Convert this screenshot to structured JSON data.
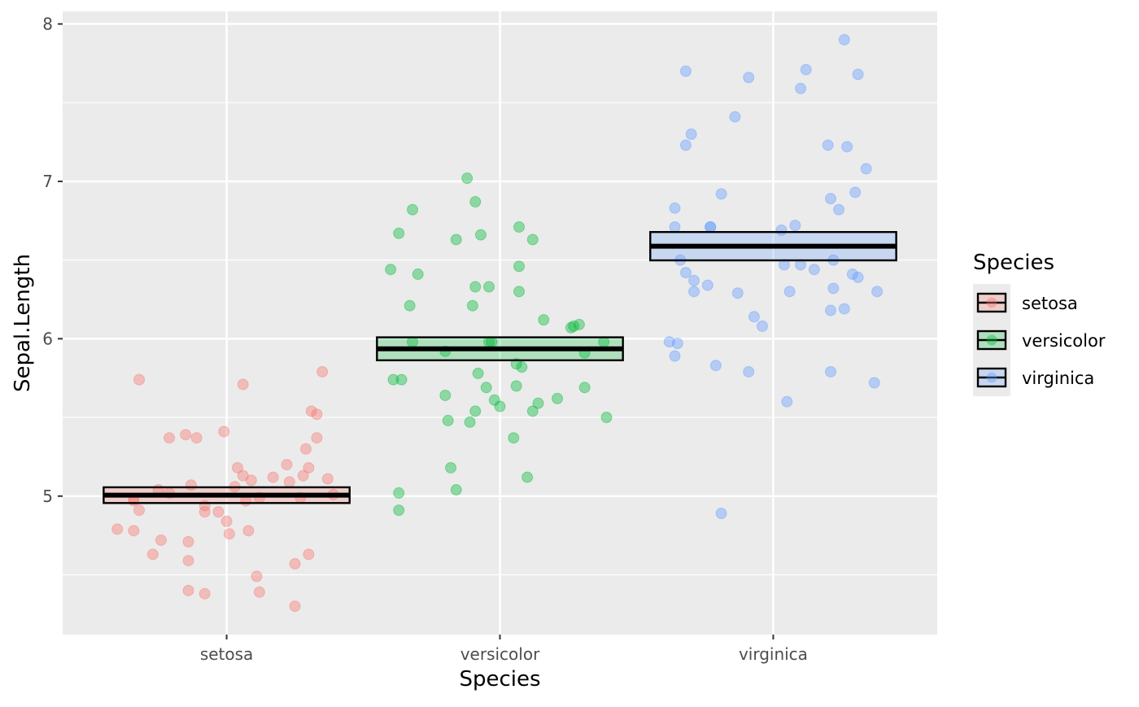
{
  "chart_data": {
    "type": "scatter",
    "title": "",
    "xlabel": "Species",
    "ylabel": "Sepal.Length",
    "categories": [
      "setosa",
      "versicolor",
      "virginica"
    ],
    "y_ticks": [
      5,
      6,
      7,
      8
    ],
    "ylim": [
      4.12,
      8.08
    ],
    "xlim": [
      0.4,
      3.6
    ],
    "grid": true,
    "legend": {
      "title": "Species",
      "position": "right",
      "entries": [
        "setosa",
        "versicolor",
        "virginica"
      ]
    },
    "colors": {
      "setosa": "#F8766D",
      "versicolor": "#00BA38",
      "virginica": "#619CFF",
      "panel": "#EBEBEB",
      "grid": "#FFFFFF"
    },
    "point_alpha": 0.4,
    "crossbars": [
      {
        "category": "setosa",
        "mean": 5.006,
        "lower": 4.956,
        "upper": 5.056
      },
      {
        "category": "versicolor",
        "mean": 5.936,
        "lower": 5.863,
        "upper": 6.009
      },
      {
        "category": "virginica",
        "mean": 6.588,
        "lower": 6.498,
        "upper": 6.678
      }
    ],
    "series": [
      {
        "name": "setosa",
        "points": [
          [
            0.68,
            5.74
          ],
          [
            1.06,
            5.71
          ],
          [
            1.35,
            5.79
          ],
          [
            0.79,
            5.37
          ],
          [
            0.85,
            5.39
          ],
          [
            0.89,
            5.37
          ],
          [
            0.99,
            5.41
          ],
          [
            1.31,
            5.54
          ],
          [
            1.33,
            5.52
          ],
          [
            1.33,
            5.37
          ],
          [
            1.29,
            5.3
          ],
          [
            1.04,
            5.18
          ],
          [
            1.06,
            5.13
          ],
          [
            1.09,
            5.1
          ],
          [
            1.17,
            5.12
          ],
          [
            1.22,
            5.2
          ],
          [
            1.23,
            5.09
          ],
          [
            1.3,
            5.18
          ],
          [
            1.28,
            5.13
          ],
          [
            1.03,
            5.06
          ],
          [
            0.87,
            5.07
          ],
          [
            0.75,
            5.04
          ],
          [
            0.79,
            5.02
          ],
          [
            0.92,
            4.94
          ],
          [
            0.92,
            4.9
          ],
          [
            0.97,
            4.9
          ],
          [
            0.68,
            4.91
          ],
          [
            0.66,
            4.97
          ],
          [
            0.66,
            4.98
          ],
          [
            1.07,
            4.97
          ],
          [
            1.12,
            4.99
          ],
          [
            1.27,
            4.99
          ],
          [
            1.39,
            5.01
          ],
          [
            1.37,
            5.11
          ],
          [
            1.0,
            4.84
          ],
          [
            1.01,
            4.76
          ],
          [
            1.08,
            4.78
          ],
          [
            0.6,
            4.79
          ],
          [
            0.66,
            4.78
          ],
          [
            0.76,
            4.72
          ],
          [
            0.86,
            4.71
          ],
          [
            0.73,
            4.63
          ],
          [
            0.86,
            4.59
          ],
          [
            1.3,
            4.63
          ],
          [
            1.25,
            4.57
          ],
          [
            1.11,
            4.49
          ],
          [
            0.86,
            4.4
          ],
          [
            0.92,
            4.38
          ],
          [
            1.12,
            4.39
          ],
          [
            1.25,
            4.3
          ]
        ]
      },
      {
        "name": "versicolor",
        "points": [
          [
            1.88,
            7.02
          ],
          [
            1.91,
            6.87
          ],
          [
            1.68,
            6.82
          ],
          [
            1.63,
            6.67
          ],
          [
            1.84,
            6.63
          ],
          [
            1.93,
            6.66
          ],
          [
            2.07,
            6.71
          ],
          [
            2.12,
            6.63
          ],
          [
            1.6,
            6.44
          ],
          [
            1.7,
            6.41
          ],
          [
            2.07,
            6.46
          ],
          [
            1.91,
            6.33
          ],
          [
            1.96,
            6.33
          ],
          [
            1.67,
            6.21
          ],
          [
            1.9,
            6.21
          ],
          [
            2.07,
            6.3
          ],
          [
            2.16,
            6.12
          ],
          [
            2.29,
            6.09
          ],
          [
            2.26,
            6.07
          ],
          [
            2.27,
            6.08
          ],
          [
            1.68,
            5.98
          ],
          [
            1.8,
            5.92
          ],
          [
            1.96,
            5.98
          ],
          [
            1.97,
            5.98
          ],
          [
            2.38,
            5.98
          ],
          [
            2.31,
            5.91
          ],
          [
            2.06,
            5.84
          ],
          [
            2.08,
            5.82
          ],
          [
            1.92,
            5.78
          ],
          [
            1.61,
            5.74
          ],
          [
            1.64,
            5.74
          ],
          [
            1.95,
            5.69
          ],
          [
            2.06,
            5.7
          ],
          [
            2.31,
            5.69
          ],
          [
            1.8,
            5.64
          ],
          [
            1.98,
            5.61
          ],
          [
            2.0,
            5.57
          ],
          [
            2.14,
            5.59
          ],
          [
            2.21,
            5.62
          ],
          [
            1.91,
            5.54
          ],
          [
            2.12,
            5.54
          ],
          [
            1.81,
            5.48
          ],
          [
            1.89,
            5.47
          ],
          [
            2.39,
            5.5
          ],
          [
            2.05,
            5.37
          ],
          [
            1.82,
            5.18
          ],
          [
            2.1,
            5.12
          ],
          [
            1.84,
            5.04
          ],
          [
            1.63,
            5.02
          ],
          [
            1.63,
            4.91
          ]
        ]
      },
      {
        "name": "virginica",
        "points": [
          [
            3.26,
            7.9
          ],
          [
            2.68,
            7.7
          ],
          [
            3.12,
            7.71
          ],
          [
            2.91,
            7.66
          ],
          [
            3.31,
            7.68
          ],
          [
            3.1,
            7.59
          ],
          [
            2.86,
            7.41
          ],
          [
            2.7,
            7.3
          ],
          [
            2.68,
            7.23
          ],
          [
            3.2,
            7.23
          ],
          [
            3.27,
            7.22
          ],
          [
            3.34,
            7.08
          ],
          [
            2.81,
            6.92
          ],
          [
            2.64,
            6.83
          ],
          [
            3.3,
            6.93
          ],
          [
            3.21,
            6.89
          ],
          [
            2.64,
            6.71
          ],
          [
            2.77,
            6.71
          ],
          [
            2.77,
            6.71
          ],
          [
            3.03,
            6.69
          ],
          [
            3.08,
            6.72
          ],
          [
            3.24,
            6.82
          ],
          [
            2.66,
            6.5
          ],
          [
            3.04,
            6.47
          ],
          [
            3.1,
            6.47
          ],
          [
            3.22,
            6.5
          ],
          [
            3.15,
            6.44
          ],
          [
            2.68,
            6.42
          ],
          [
            2.71,
            6.37
          ],
          [
            2.76,
            6.34
          ],
          [
            2.71,
            6.3
          ],
          [
            2.87,
            6.29
          ],
          [
            3.06,
            6.3
          ],
          [
            3.22,
            6.32
          ],
          [
            3.29,
            6.41
          ],
          [
            3.31,
            6.39
          ],
          [
            3.38,
            6.3
          ],
          [
            2.93,
            6.14
          ],
          [
            2.96,
            6.08
          ],
          [
            3.21,
            6.18
          ],
          [
            3.26,
            6.19
          ],
          [
            2.62,
            5.98
          ],
          [
            2.65,
            5.97
          ],
          [
            2.64,
            5.89
          ],
          [
            2.79,
            5.83
          ],
          [
            2.91,
            5.79
          ],
          [
            3.21,
            5.79
          ],
          [
            3.37,
            5.72
          ],
          [
            3.05,
            5.6
          ],
          [
            2.81,
            4.89
          ]
        ]
      }
    ]
  }
}
